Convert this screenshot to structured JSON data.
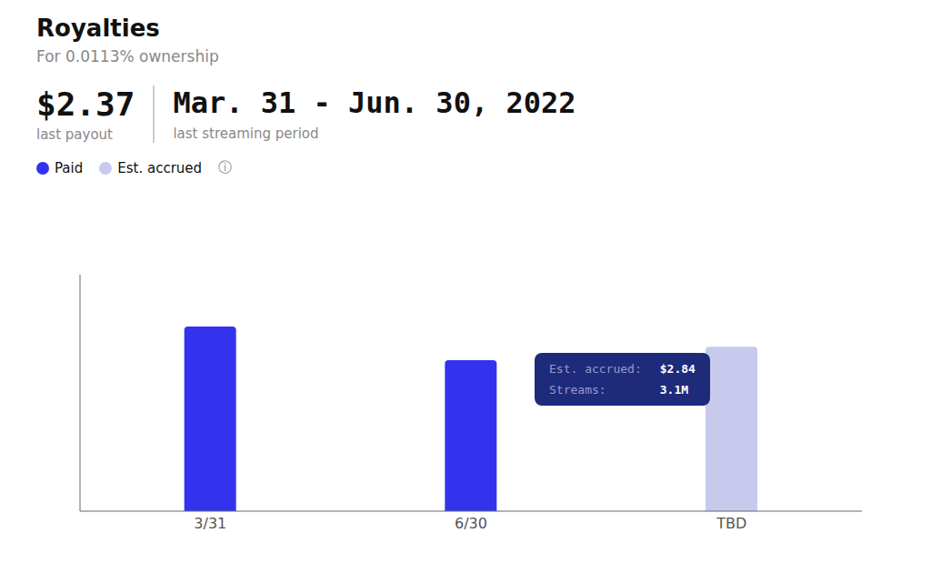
{
  "chart_data": {
    "type": "bar",
    "title": "Royalties",
    "subtitle": "For 0.0113% ownership",
    "categories": [
      "3/31",
      "6/30",
      "TBD"
    ],
    "series": [
      {
        "name": "Paid",
        "color": "#3333ee",
        "values": [
          0.82,
          0.67,
          null
        ]
      },
      {
        "name": "Est. accrued",
        "color": "#c8caed",
        "values": [
          null,
          null,
          0.73
        ]
      }
    ],
    "stacked": true,
    "ylim": [
      0,
      1.05
    ],
    "tick_labels": "x",
    "grid": false,
    "legend": "upper left",
    "annotations": [
      "$2.37",
      "last payout",
      "Mar. 31 - Jun. 30, 2022",
      "last streaming period",
      "Est. accrued:",
      "$2.84",
      "Streams:",
      "3.1M",
      "ⓘ"
    ]
  }
}
